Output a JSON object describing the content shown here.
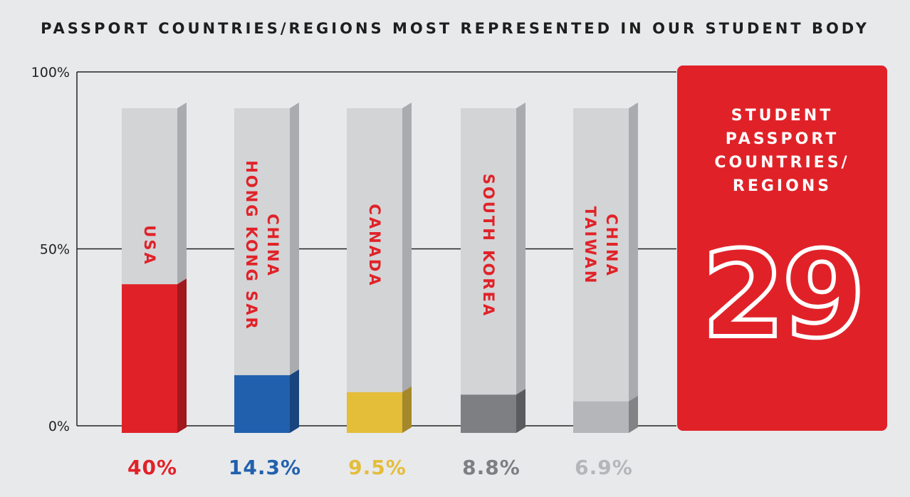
{
  "title": "PASSPORT COUNTRIES/REGIONS MOST REPRESENTED IN OUR STUDENT BODY",
  "chart_data": {
    "type": "bar",
    "categories": [
      "USA",
      "HONG KONG SAR\nCHINA",
      "CANADA",
      "SOUTH KOREA",
      "TAIWAN\nCHINA"
    ],
    "values": [
      40,
      14.3,
      9.5,
      8.8,
      6.9
    ],
    "value_labels": [
      "40%",
      "14.3%",
      "9.5%",
      "8.8%",
      "6.9%"
    ],
    "colors": [
      "#e02228",
      "#2160ad",
      "#e4bd39",
      "#7d7f83",
      "#b4b6b9"
    ],
    "ylim": [
      0,
      100
    ],
    "yticks": [
      "0%",
      "50%",
      "100%"
    ],
    "grid": true
  },
  "panel": {
    "label": "STUDENT\nPASSPORT\nCOUNTRIES/\nREGIONS",
    "number": "29"
  },
  "colors": {
    "background": "#e8e9eb",
    "accent": "#e02228",
    "bar_base": "#d3d4d6"
  }
}
